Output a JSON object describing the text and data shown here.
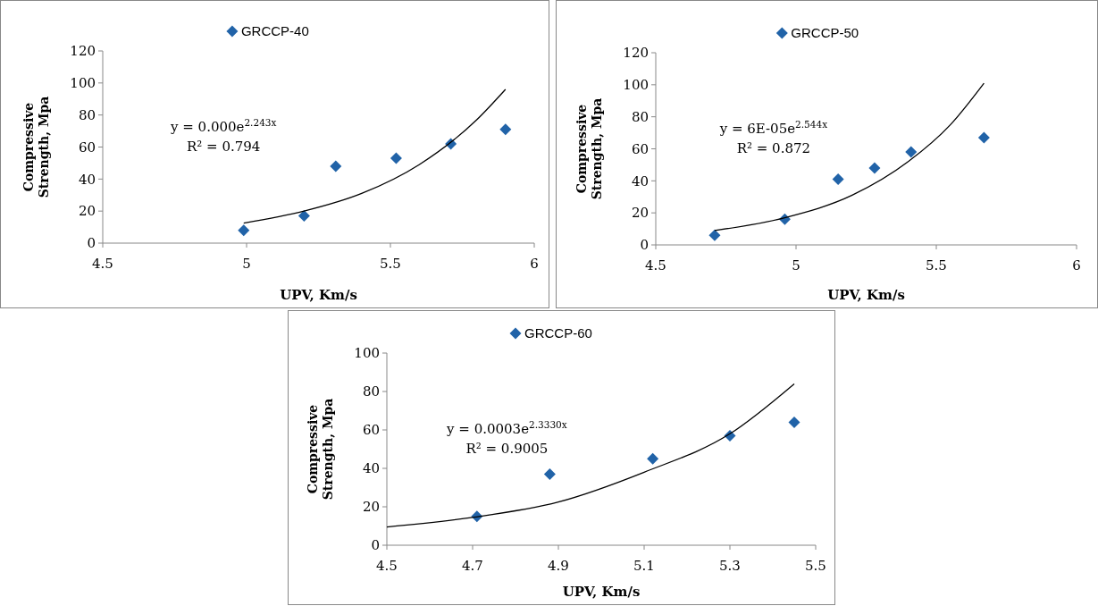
{
  "chart_data": [
    {
      "type": "scatter",
      "xlabel": "UPV, Km/s",
      "ylabel": "Compressive Strength, Mpa",
      "xlim": [
        4.5,
        6
      ],
      "xticks": [
        4.5,
        5,
        5.5,
        6
      ],
      "ylim": [
        0,
        120
      ],
      "yticks": [
        0,
        20,
        40,
        60,
        80,
        100,
        120
      ],
      "grid": false,
      "legend": "top",
      "marker": "diamond",
      "annotations": [
        "y = 0.000e$^{2.243x}$",
        "R² = 0.794"
      ],
      "series": [
        {
          "name": "GRCCP-40",
          "color": "#2163a8",
          "x": [
            4.99,
            5.2,
            5.31,
            5.52,
            5.71,
            5.9
          ],
          "values": [
            8,
            17,
            48,
            53,
            62,
            71
          ]
        },
        {
          "type": "line",
          "color": "#000000",
          "marker": "none",
          "x": [
            4.99,
            5.2,
            5.4,
            5.6,
            5.8,
            5.9
          ],
          "values": [
            12.5,
            20,
            31,
            49,
            77,
            96
          ]
        }
      ]
    },
    {
      "type": "scatter",
      "xlabel": "UPV, Km/s",
      "ylabel": "Compressive Strength, Mpa",
      "xlim": [
        4.5,
        6
      ],
      "xticks": [
        4.5,
        5,
        5.5,
        6
      ],
      "ylim": [
        0,
        120
      ],
      "yticks": [
        0,
        20,
        40,
        60,
        80,
        100,
        120
      ],
      "grid": false,
      "legend": "top",
      "marker": "diamond",
      "annotations": [
        "y = 6E-05e$^{2.544x}$",
        "R² = 0.872"
      ],
      "series": [
        {
          "name": "GRCCP-50",
          "color": "#2163a8",
          "x": [
            4.71,
            4.96,
            5.15,
            5.28,
            5.41,
            5.67
          ],
          "values": [
            6,
            16,
            41,
            48,
            58,
            67
          ]
        },
        {
          "type": "line",
          "color": "#000000",
          "marker": "none",
          "x": [
            4.71,
            4.96,
            5.2,
            5.4,
            5.55,
            5.67
          ],
          "values": [
            9,
            17,
            31,
            52,
            75,
            101
          ]
        }
      ]
    },
    {
      "type": "scatter",
      "xlabel": "UPV, Km/s",
      "ylabel": "Compressive Strength, Mpa",
      "xlim": [
        4.5,
        5.5
      ],
      "xticks": [
        4.5,
        4.7,
        4.9,
        5.1,
        5.3,
        5.5
      ],
      "ylim": [
        0,
        100
      ],
      "yticks": [
        0,
        20,
        40,
        60,
        80,
        100
      ],
      "grid": false,
      "legend": "top",
      "marker": "diamond",
      "annotations": [
        "y = 0.0003e$^{2.3330x}$",
        "R² = 0.9005"
      ],
      "series": [
        {
          "name": "GRCCP-60",
          "color": "#2163a8",
          "x": [
            4.71,
            4.88,
            5.12,
            5.3,
            5.45
          ],
          "values": [
            15,
            37,
            45,
            57,
            64
          ]
        },
        {
          "type": "line",
          "color": "#000000",
          "marker": "none",
          "x": [
            4.5,
            4.7,
            4.9,
            5.1,
            5.3,
            5.45
          ],
          "values": [
            9.5,
            14.5,
            22.5,
            38,
            58,
            84
          ]
        }
      ]
    }
  ]
}
